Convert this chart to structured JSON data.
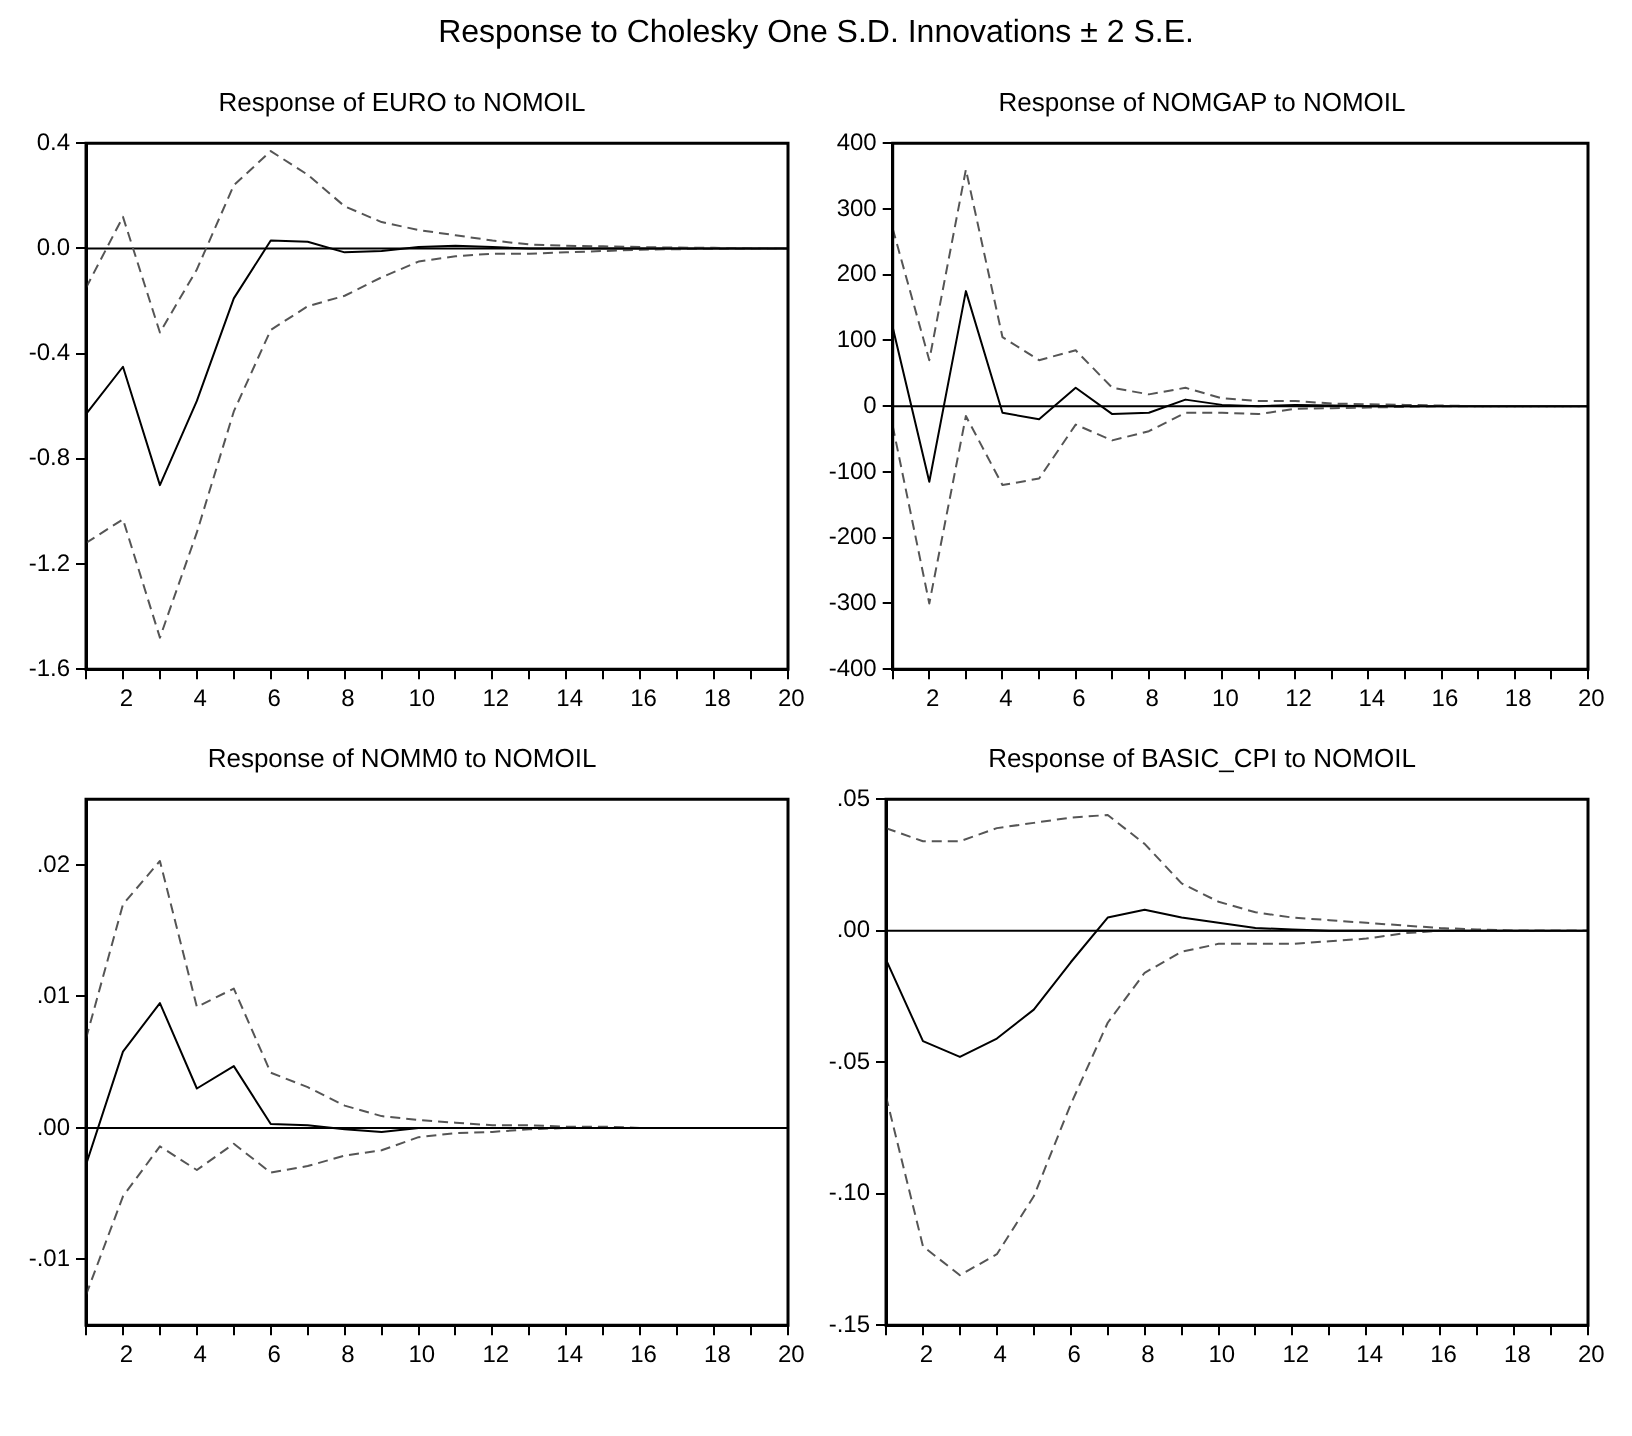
{
  "chart_data": [
    {
      "type": "line",
      "title": "Response of EURO to NOMOIL",
      "annotations": [
        "Response to Cholesky One S.D. Innovations ± 2 S.E."
      ],
      "x": [
        1,
        2,
        3,
        4,
        5,
        6,
        7,
        8,
        9,
        10,
        11,
        12,
        13,
        14,
        15,
        16,
        17,
        18,
        19,
        20
      ],
      "xlim": [
        1,
        20
      ],
      "xticks": [
        {
          "value": 1,
          "label": null
        },
        2,
        {
          "value": 3,
          "label": null
        },
        4,
        {
          "value": 5,
          "label": null
        },
        6,
        {
          "value": 7,
          "label": null
        },
        8,
        {
          "value": 9,
          "label": null
        },
        10,
        {
          "value": 11,
          "label": null
        },
        12,
        {
          "value": 13,
          "label": null
        },
        14,
        {
          "value": 15,
          "label": null
        },
        16,
        {
          "value": 17,
          "label": null
        },
        18,
        {
          "value": 19,
          "label": null
        },
        20
      ],
      "ylim": [
        -1.6,
        0.4
      ],
      "yticks": [
        {
          "value": -1.6,
          "label": "-1.6"
        },
        {
          "value": -1.2,
          "label": "-1.2"
        },
        {
          "value": -0.8,
          "label": "-0.8"
        },
        {
          "value": -0.4,
          "label": "-0.4"
        },
        {
          "value": 0,
          "label": "0.0"
        },
        {
          "value": 0.4,
          "label": "0.4"
        }
      ],
      "ref_lines": [
        {
          "axis": "y",
          "value": 0,
          "color": "#000000"
        }
      ],
      "series": [
        {
          "color": "#000000",
          "line_style": "solid",
          "values": [
            -0.63,
            -0.45,
            -0.9,
            -0.58,
            -0.19,
            0.03,
            0.025,
            -0.015,
            -0.01,
            0.005,
            0.01,
            0.005,
            0,
            0,
            0,
            0,
            0,
            0,
            0,
            0
          ]
        },
        {
          "color": "#555555",
          "line_style": "dashed",
          "values": [
            -0.15,
            0.12,
            -0.32,
            -0.08,
            0.24,
            0.37,
            0.28,
            0.16,
            0.1,
            0.07,
            0.05,
            0.03,
            0.015,
            0.01,
            0.008,
            0.005,
            0.003,
            0.002,
            0.001,
            0
          ]
        },
        {
          "color": "#555555",
          "line_style": "dashed",
          "values": [
            -1.12,
            -1.03,
            -1.48,
            -1.08,
            -0.62,
            -0.31,
            -0.22,
            -0.18,
            -0.11,
            -0.05,
            -0.03,
            -0.02,
            -0.02,
            -0.015,
            -0.01,
            -0.005,
            -0.003,
            -0.002,
            -0.001,
            0
          ]
        }
      ]
    },
    {
      "type": "line",
      "title": "Response of NOMGAP to NOMOIL",
      "x": [
        1,
        2,
        3,
        4,
        5,
        6,
        7,
        8,
        9,
        10,
        11,
        12,
        13,
        14,
        15,
        16,
        17,
        18,
        19,
        20
      ],
      "xlim": [
        1,
        20
      ],
      "xticks": [
        {
          "value": 1,
          "label": null
        },
        2,
        {
          "value": 3,
          "label": null
        },
        4,
        {
          "value": 5,
          "label": null
        },
        6,
        {
          "value": 7,
          "label": null
        },
        8,
        {
          "value": 9,
          "label": null
        },
        10,
        {
          "value": 11,
          "label": null
        },
        12,
        {
          "value": 13,
          "label": null
        },
        14,
        {
          "value": 15,
          "label": null
        },
        16,
        {
          "value": 17,
          "label": null
        },
        18,
        {
          "value": 19,
          "label": null
        },
        20
      ],
      "ylim": [
        -400,
        400
      ],
      "yticks": [
        -400,
        -300,
        -200,
        -100,
        0,
        100,
        200,
        300,
        400
      ],
      "ref_lines": [
        {
          "axis": "y",
          "value": 0,
          "color": "#000000"
        }
      ],
      "series": [
        {
          "color": "#000000",
          "line_style": "solid",
          "values": [
            120,
            -115,
            175,
            -10,
            -20,
            28,
            -12,
            -10,
            10,
            2,
            0,
            2,
            1,
            0,
            0,
            0,
            0,
            0,
            0,
            0
          ]
        },
        {
          "color": "#555555",
          "line_style": "dashed",
          "values": [
            270,
            70,
            360,
            105,
            70,
            85,
            28,
            18,
            28,
            12,
            8,
            8,
            4,
            3,
            2,
            1,
            0,
            0,
            0,
            0
          ]
        },
        {
          "color": "#555555",
          "line_style": "dashed",
          "values": [
            -30,
            -300,
            -15,
            -120,
            -110,
            -28,
            -52,
            -38,
            -10,
            -10,
            -12,
            -4,
            -3,
            -2,
            -1,
            0,
            0,
            0,
            0,
            0
          ]
        }
      ]
    },
    {
      "type": "line",
      "title": "Response of NOMM0 to NOMOIL",
      "x": [
        1,
        2,
        3,
        4,
        5,
        6,
        7,
        8,
        9,
        10,
        11,
        12,
        13,
        14,
        15,
        16,
        17,
        18,
        19,
        20
      ],
      "xlim": [
        1,
        20
      ],
      "xticks": [
        {
          "value": 1,
          "label": null
        },
        2,
        {
          "value": 3,
          "label": null
        },
        4,
        {
          "value": 5,
          "label": null
        },
        6,
        {
          "value": 7,
          "label": null
        },
        8,
        {
          "value": 9,
          "label": null
        },
        10,
        {
          "value": 11,
          "label": null
        },
        12,
        {
          "value": 13,
          "label": null
        },
        14,
        {
          "value": 15,
          "label": null
        },
        16,
        {
          "value": 17,
          "label": null
        },
        18,
        {
          "value": 19,
          "label": null
        },
        20
      ],
      "ylim": [
        -0.015,
        0.025
      ],
      "yticks": [
        {
          "value": -0.01,
          "label": "-.01"
        },
        {
          "value": 0,
          "label": ".00"
        },
        {
          "value": 0.01,
          "label": ".01"
        },
        {
          "value": 0.02,
          "label": ".02"
        }
      ],
      "ref_lines": [
        {
          "axis": "y",
          "value": 0,
          "color": "#000000"
        }
      ],
      "series": [
        {
          "color": "#000000",
          "line_style": "solid",
          "values": [
            -0.0028,
            0.0058,
            0.0095,
            0.003,
            0.0047,
            0.0003,
            0.0002,
            -0.0001,
            -0.0003,
            0,
            0,
            0,
            0,
            0,
            0,
            0,
            0,
            0,
            0,
            0
          ]
        },
        {
          "color": "#555555",
          "line_style": "dashed",
          "values": [
            0.0068,
            0.017,
            0.0203,
            0.0092,
            0.0106,
            0.0042,
            0.0031,
            0.0017,
            0.0009,
            0.0006,
            0.0004,
            0.0002,
            0.0002,
            0.0001,
            0.0001,
            0,
            0,
            0,
            0,
            0
          ]
        },
        {
          "color": "#555555",
          "line_style": "dashed",
          "values": [
            -0.0127,
            -0.0052,
            -0.0014,
            -0.0032,
            -0.0012,
            -0.0034,
            -0.0029,
            -0.0021,
            -0.0017,
            -0.0007,
            -0.0004,
            -0.0003,
            -0.0001,
            0,
            0,
            0,
            0,
            0,
            0,
            0
          ]
        }
      ]
    },
    {
      "type": "line",
      "title": "Response of BASIC_CPI to NOMOIL",
      "x": [
        1,
        2,
        3,
        4,
        5,
        6,
        7,
        8,
        9,
        10,
        11,
        12,
        13,
        14,
        15,
        16,
        17,
        18,
        19,
        20
      ],
      "xlim": [
        1,
        20
      ],
      "xticks": [
        {
          "value": 1,
          "label": null
        },
        2,
        {
          "value": 3,
          "label": null
        },
        4,
        {
          "value": 5,
          "label": null
        },
        6,
        {
          "value": 7,
          "label": null
        },
        8,
        {
          "value": 9,
          "label": null
        },
        10,
        {
          "value": 11,
          "label": null
        },
        12,
        {
          "value": 13,
          "label": null
        },
        14,
        {
          "value": 15,
          "label": null
        },
        16,
        {
          "value": 17,
          "label": null
        },
        18,
        {
          "value": 19,
          "label": null
        },
        20
      ],
      "ylim": [
        -0.15,
        0.05
      ],
      "yticks": [
        {
          "value": -0.15,
          "label": "-.15"
        },
        {
          "value": -0.1,
          "label": "-.10"
        },
        {
          "value": -0.05,
          "label": "-.05"
        },
        {
          "value": 0,
          "label": ".00"
        },
        {
          "value": 0.05,
          "label": ".05"
        }
      ],
      "ref_lines": [
        {
          "axis": "y",
          "value": 0,
          "color": "#000000"
        }
      ],
      "series": [
        {
          "color": "#000000",
          "line_style": "solid",
          "values": [
            -0.011,
            -0.042,
            -0.048,
            -0.041,
            -0.03,
            -0.012,
            0.005,
            0.008,
            0.005,
            0.003,
            0.001,
            0.0005,
            0,
            0,
            0,
            0,
            0,
            0,
            0,
            0
          ]
        },
        {
          "color": "#555555",
          "line_style": "dashed",
          "values": [
            0.039,
            0.034,
            0.034,
            0.039,
            0.041,
            0.043,
            0.044,
            0.033,
            0.018,
            0.011,
            0.007,
            0.005,
            0.004,
            0.003,
            0.002,
            0.001,
            0.0005,
            0,
            0,
            0
          ]
        },
        {
          "color": "#555555",
          "line_style": "dashed",
          "values": [
            -0.063,
            -0.12,
            -0.131,
            -0.123,
            -0.101,
            -0.066,
            -0.035,
            -0.016,
            -0.008,
            -0.005,
            -0.005,
            -0.005,
            -0.004,
            -0.003,
            -0.001,
            0,
            0,
            0,
            0,
            0
          ]
        }
      ]
    }
  ]
}
